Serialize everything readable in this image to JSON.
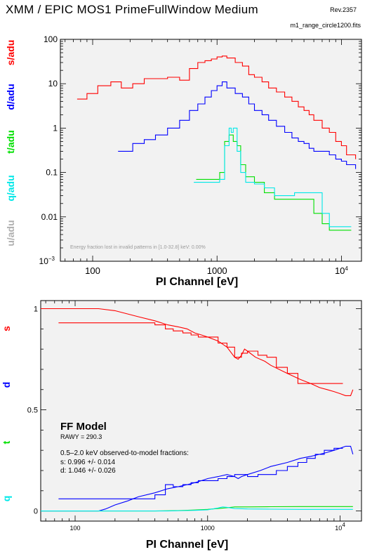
{
  "header": {
    "title": "XMM / EPIC MOS1 PrimeFullWindow Medium",
    "revision": "Rev.2357",
    "filename": "m1_range_circle1200.fits"
  },
  "chart_data": [
    {
      "type": "line",
      "xlabel": "PI Channel [eV]",
      "xscale": "log",
      "yscale": "log",
      "xlim": [
        55,
        14500
      ],
      "ylim": [
        0.001,
        100
      ],
      "grid": false,
      "x_ticks": [
        {
          "value": 100,
          "label": "100"
        },
        {
          "value": 1000,
          "label": "1000"
        },
        {
          "value": 10000,
          "label": "10",
          "exponent": "4"
        }
      ],
      "y_ticks": [
        {
          "value": 100,
          "label": "100"
        },
        {
          "value": 10,
          "label": "10"
        },
        {
          "value": 1,
          "label": "1"
        },
        {
          "value": 0.1,
          "label": "0.1"
        },
        {
          "value": 0.01,
          "label": "0.01"
        },
        {
          "value": 0.001,
          "label": "10",
          "exponent": "−3"
        }
      ],
      "y_labels": [
        {
          "text": "s/adu",
          "color": "#ff0000"
        },
        {
          "text": "d/adu",
          "color": "#0000ff"
        },
        {
          "text": "t/adu",
          "color": "#00e000"
        },
        {
          "text": "q/adu",
          "color": "#00e8e8"
        },
        {
          "text": "u/adu",
          "color": "#b0b0b0"
        }
      ],
      "annotation": "Energy fraction lost in invalid patterns in [1.0-32.8] keV: 0.00%",
      "series": [
        {
          "color": "#ff0000",
          "x": [
            75,
            90,
            110,
            140,
            170,
            210,
            260,
            320,
            400,
            500,
            600,
            700,
            800,
            900,
            1000,
            1100,
            1200,
            1400,
            1600,
            1800,
            2000,
            2300,
            2600,
            3000,
            3500,
            4000,
            4500,
            5000,
            5500,
            6000,
            7000,
            8000,
            9000,
            10000,
            11000,
            12000,
            13000
          ],
          "y": [
            4.5,
            6,
            9,
            11,
            8,
            10,
            13,
            13,
            14,
            12,
            22,
            30,
            33,
            36,
            40,
            42,
            38,
            30,
            25,
            16,
            14,
            11,
            8,
            6.5,
            5,
            4,
            3,
            2.5,
            2,
            1.5,
            1,
            0.8,
            0.5,
            0.4,
            0.25,
            0.25,
            0.2
          ]
        },
        {
          "color": "#0000ff",
          "x": [
            160,
            210,
            260,
            320,
            400,
            500,
            600,
            700,
            800,
            900,
            1000,
            1100,
            1200,
            1400,
            1600,
            1800,
            2000,
            2300,
            2600,
            3000,
            3500,
            4000,
            4500,
            5000,
            5500,
            6000,
            7000,
            8000,
            9000,
            10000,
            11000,
            12000,
            13000
          ],
          "y": [
            0.3,
            0.45,
            0.55,
            0.7,
            1.0,
            1.5,
            2.5,
            3.5,
            5,
            7,
            9,
            11,
            8,
            6,
            5,
            3.5,
            2.5,
            2,
            1.5,
            1.1,
            0.8,
            0.6,
            0.5,
            0.45,
            0.35,
            0.3,
            0.3,
            0.25,
            0.2,
            0.18,
            0.15,
            0.15,
            0.12
          ]
        },
        {
          "color": "#00e000",
          "x": [
            680,
            900,
            1050,
            1150,
            1250,
            1350,
            1450,
            1550,
            1700,
            2000,
            2400,
            2900,
            3500,
            4200,
            5000,
            6000,
            7000,
            8000,
            9000,
            10000,
            12000
          ],
          "y": [
            0.07,
            0.07,
            0.1,
            0.5,
            0.7,
            0.5,
            0.4,
            0.15,
            0.08,
            0.06,
            0.035,
            0.025,
            0.025,
            0.025,
            0.025,
            0.012,
            0.007,
            0.005,
            0.005,
            0.005,
            0.005
          ]
        },
        {
          "color": "#00e8e8",
          "x": [
            650,
            900,
            1050,
            1150,
            1250,
            1300,
            1350,
            1450,
            1550,
            1700,
            2000,
            2400,
            2900,
            3500,
            4200,
            5000,
            6000,
            7000,
            8000,
            9000,
            10000,
            12000
          ],
          "y": [
            0.06,
            0.06,
            0.07,
            0.4,
            1.0,
            0.8,
            1.0,
            0.3,
            0.1,
            0.06,
            0.055,
            0.045,
            0.03,
            0.03,
            0.035,
            0.035,
            0.035,
            0.012,
            0.006,
            0.006,
            0.006,
            0.006
          ]
        }
      ]
    },
    {
      "type": "line",
      "xlabel": "PI Channel [eV]",
      "xscale": "log",
      "xlim": [
        55,
        14500
      ],
      "ylim": [
        -0.05,
        1.04
      ],
      "grid": false,
      "x_ticks": [
        {
          "value": 100,
          "label": "100"
        },
        {
          "value": 1000,
          "label": "1000"
        },
        {
          "value": 10000,
          "label": "10",
          "exponent": "4"
        }
      ],
      "y_ticks": [
        {
          "value": 1,
          "label": "1"
        },
        {
          "value": 0.5,
          "label": "0.5"
        },
        {
          "value": 0,
          "label": "0"
        }
      ],
      "y_labels": [
        {
          "text": "s",
          "color": "#ff0000"
        },
        {
          "text": "d",
          "color": "#0000ff"
        },
        {
          "text": "t",
          "color": "#00e000"
        },
        {
          "text": "q",
          "color": "#00e8e8"
        }
      ],
      "model_title": "FF Model",
      "rawy": "RAWY = 290.3",
      "fraction_heading": "0.5–2.0 keV observed-to-model fractions:",
      "fractions": [
        "s: 0.996 +/- 0.014",
        "d: 1.046 +/- 0.026"
      ],
      "series": [
        {
          "color": "#ff0000",
          "style": "model",
          "x": [
            55,
            150,
            200,
            300,
            400,
            500,
            600,
            700,
            800,
            900,
            1000,
            1200,
            1400,
            1600,
            1700,
            1800,
            1900,
            2000,
            2300,
            2700,
            3000,
            4000,
            5000,
            6000,
            7000,
            8000,
            9000,
            10000,
            11000,
            12000,
            12500
          ],
          "y": [
            1.0,
            1.0,
            0.99,
            0.96,
            0.94,
            0.92,
            0.91,
            0.9,
            0.88,
            0.87,
            0.86,
            0.84,
            0.81,
            0.76,
            0.75,
            0.77,
            0.8,
            0.79,
            0.76,
            0.74,
            0.72,
            0.68,
            0.65,
            0.63,
            0.61,
            0.6,
            0.59,
            0.58,
            0.57,
            0.57,
            0.6
          ]
        },
        {
          "color": "#ff0000",
          "style": "observed",
          "x": [
            75,
            150,
            250,
            400,
            480,
            550,
            650,
            750,
            850,
            1000,
            1200,
            1400,
            1600,
            1800,
            2000,
            2400,
            2800,
            3300,
            4000,
            4800,
            5600,
            6500,
            7600,
            9000,
            10500
          ],
          "y": [
            0.93,
            0.93,
            0.93,
            0.92,
            0.9,
            0.89,
            0.88,
            0.87,
            0.86,
            0.86,
            0.83,
            0.81,
            0.76,
            0.78,
            0.79,
            0.77,
            0.76,
            0.71,
            0.68,
            0.63,
            0.63,
            0.63,
            0.63,
            0.63,
            0.63
          ]
        },
        {
          "color": "#0000ff",
          "style": "model",
          "x": [
            55,
            150,
            170,
            200,
            250,
            300,
            400,
            500,
            600,
            700,
            800,
            900,
            1000,
            1200,
            1400,
            1600,
            1700,
            1800,
            2000,
            2500,
            3000,
            4000,
            5000,
            6000,
            7000,
            8000,
            9000,
            10000,
            11000,
            12000,
            12500
          ],
          "y": [
            0.0,
            0.0,
            0.01,
            0.03,
            0.05,
            0.07,
            0.09,
            0.11,
            0.12,
            0.13,
            0.14,
            0.15,
            0.16,
            0.17,
            0.18,
            0.17,
            0.16,
            0.17,
            0.18,
            0.2,
            0.22,
            0.24,
            0.26,
            0.27,
            0.28,
            0.29,
            0.3,
            0.31,
            0.32,
            0.32,
            0.28
          ]
        },
        {
          "color": "#0000ff",
          "style": "observed",
          "x": [
            75,
            150,
            250,
            400,
            480,
            550,
            650,
            750,
            850,
            1000,
            1200,
            1400,
            1600,
            1800,
            2000,
            2400,
            2800,
            3300,
            4000,
            4800,
            5600,
            6500,
            7600,
            9000,
            10500
          ],
          "y": [
            0.06,
            0.06,
            0.06,
            0.08,
            0.13,
            0.12,
            0.13,
            0.14,
            0.15,
            0.15,
            0.16,
            0.17,
            0.18,
            0.18,
            0.17,
            0.18,
            0.18,
            0.2,
            0.22,
            0.24,
            0.26,
            0.28,
            0.3,
            0.31,
            0.31
          ]
        },
        {
          "color": "#00e000",
          "style": "model",
          "x": [
            55,
            400,
            600,
            800,
            1000,
            1200,
            1400,
            1600,
            1800,
            2000,
            3000,
            5000,
            8000,
            12500
          ],
          "y": [
            0.0,
            0.0,
            0.002,
            0.005,
            0.008,
            0.012,
            0.016,
            0.02,
            0.02,
            0.02,
            0.021,
            0.022,
            0.022,
            0.022
          ]
        },
        {
          "color": "#00e8e8",
          "style": "model",
          "x": [
            55,
            500,
            800,
            1000,
            1200,
            1300,
            1400,
            1600,
            2000,
            3000,
            5000,
            8000,
            12500
          ],
          "y": [
            0.0,
            0.0,
            0.003,
            0.006,
            0.015,
            0.02,
            0.018,
            0.012,
            0.01,
            0.009,
            0.008,
            0.008,
            0.008
          ]
        }
      ]
    }
  ]
}
